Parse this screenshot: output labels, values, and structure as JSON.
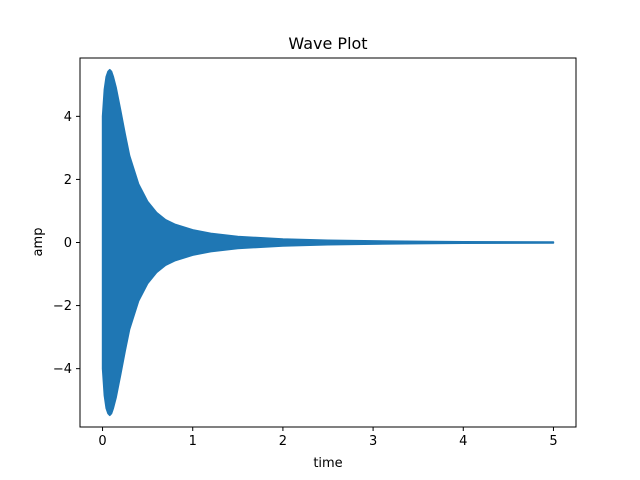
{
  "chart_data": {
    "type": "area",
    "title": "Wave Plot",
    "xlabel": "time",
    "ylabel": "amp",
    "xlim": [
      -0.25,
      5.25
    ],
    "ylim": [
      -5.85,
      5.85
    ],
    "x_ticks": [
      {
        "value": 0,
        "label": "0"
      },
      {
        "value": 1,
        "label": "1"
      },
      {
        "value": 2,
        "label": "2"
      },
      {
        "value": 3,
        "label": "3"
      },
      {
        "value": 4,
        "label": "4"
      },
      {
        "value": 5,
        "label": "5"
      }
    ],
    "y_ticks": [
      {
        "value": -4,
        "label": "−4"
      },
      {
        "value": -2,
        "label": "−2"
      },
      {
        "value": 0,
        "label": "0"
      },
      {
        "value": 2,
        "label": "2"
      },
      {
        "value": 4,
        "label": "4"
      }
    ],
    "grid": false,
    "series": [
      {
        "color": "#1f77b4",
        "envelope": {
          "x": [
            0.0,
            0.02,
            0.04,
            0.06,
            0.08,
            0.1,
            0.12,
            0.15,
            0.2,
            0.25,
            0.3,
            0.4,
            0.5,
            0.6,
            0.7,
            0.8,
            1.0,
            1.2,
            1.5,
            2.0,
            2.5,
            3.0,
            3.5,
            4.0,
            4.5,
            5.0
          ],
          "upper": [
            4.0,
            4.85,
            5.25,
            5.42,
            5.48,
            5.42,
            5.25,
            4.92,
            4.2,
            3.45,
            2.75,
            1.85,
            1.3,
            0.95,
            0.72,
            0.58,
            0.4,
            0.29,
            0.19,
            0.11,
            0.07,
            0.05,
            0.035,
            0.025,
            0.02,
            0.015
          ],
          "lower": [
            -4.0,
            -4.85,
            -5.25,
            -5.42,
            -5.48,
            -5.42,
            -5.25,
            -4.92,
            -4.2,
            -3.45,
            -2.75,
            -1.85,
            -1.3,
            -0.95,
            -0.72,
            -0.58,
            -0.4,
            -0.29,
            -0.19,
            -0.11,
            -0.07,
            -0.05,
            -0.035,
            -0.025,
            -0.02,
            -0.015
          ]
        }
      }
    ]
  }
}
